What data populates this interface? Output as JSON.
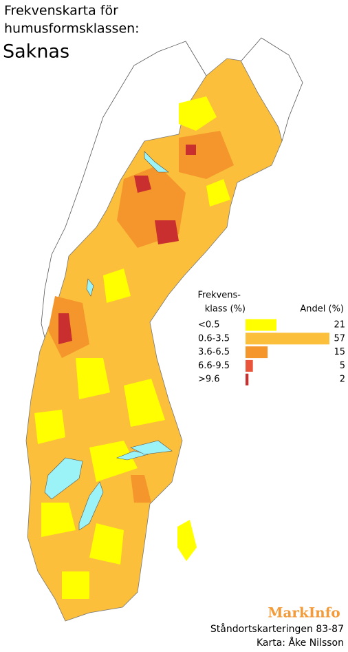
{
  "title": {
    "line1": "Frekvenskarta för",
    "line2": "humusformsklassen:",
    "subject": "Saknas"
  },
  "legend": {
    "class_header": [
      "Frekvens-",
      "klass (%)"
    ],
    "share_header": "Andel (%)",
    "categories": [
      "<0.5",
      "0.6-3.5",
      "3.6-6.5",
      "6.6-9.5",
      ">9.6"
    ],
    "values": [
      21,
      57,
      15,
      5,
      2
    ],
    "colors": [
      "#ffff00",
      "#fbbf3c",
      "#f5962c",
      "#e8553a",
      "#c92f2f"
    ]
  },
  "footer": {
    "brand": "MarkInfo",
    "source": "Ståndortskarteringen 83-87",
    "credit": "Karta: Åke Nilsson"
  }
}
